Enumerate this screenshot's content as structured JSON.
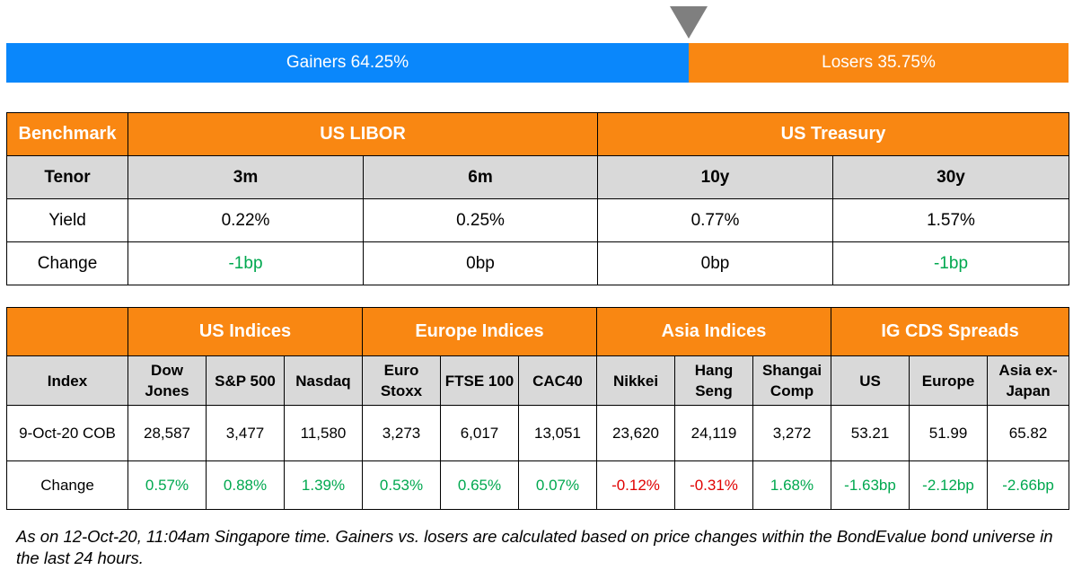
{
  "breadth": {
    "gainers_label": "Gainers 64.25%",
    "losers_label": "Losers 35.75%",
    "gainers_pct": 64.25,
    "losers_pct": 35.75,
    "gainers_color": "#0a87fb",
    "losers_color": "#f98712",
    "marker_icon": "down-triangle-icon"
  },
  "rates": {
    "benchmark_label": "Benchmark",
    "libor_label": "US LIBOR",
    "treasury_label": "US Treasury",
    "tenor_label": "Tenor",
    "yield_label": "Yield",
    "change_label": "Change",
    "columns": [
      {
        "tenor": "3m",
        "yield": "0.22%",
        "change": "-1bp"
      },
      {
        "tenor": "6m",
        "yield": "0.25%",
        "change": "0bp"
      },
      {
        "tenor": "10y",
        "yield": "0.77%",
        "change": "0bp"
      },
      {
        "tenor": "30y",
        "yield": "1.57%",
        "change": "-1bp"
      }
    ]
  },
  "indices": {
    "groups": {
      "us": "US Indices",
      "europe": "Europe Indices",
      "asia": "Asia Indices",
      "cds": "IG CDS Spreads"
    },
    "index_label": "Index",
    "date_label": "9-Oct-20 COB",
    "change_label": "Change",
    "columns": [
      {
        "name_1": "Dow",
        "name_2": "Jones",
        "value": "28,587",
        "change": "0.57%"
      },
      {
        "name_1": "S&P 500",
        "name_2": "",
        "value": "3,477",
        "change": "0.88%"
      },
      {
        "name_1": "Nasdaq",
        "name_2": "",
        "value": "11,580",
        "change": "1.39%"
      },
      {
        "name_1": "Euro",
        "name_2": "Stoxx",
        "value": "3,273",
        "change": "0.53%"
      },
      {
        "name_1": "FTSE 100",
        "name_2": "",
        "value": "6,017",
        "change": "0.65%"
      },
      {
        "name_1": "CAC40",
        "name_2": "",
        "value": "13,051",
        "change": "0.07%"
      },
      {
        "name_1": "Nikkei",
        "name_2": "",
        "value": "23,620",
        "change": "-0.12%"
      },
      {
        "name_1": "Hang",
        "name_2": "Seng",
        "value": "24,119",
        "change": "-0.31%"
      },
      {
        "name_1": "Shangai",
        "name_2": "Comp",
        "value": "3,272",
        "change": "1.68%"
      },
      {
        "name_1": "US",
        "name_2": "",
        "value": "53.21",
        "change": "-1.63bp"
      },
      {
        "name_1": "Europe",
        "name_2": "",
        "value": "51.99",
        "change": "-2.12bp"
      },
      {
        "name_1": "Asia ex-",
        "name_2": "Japan",
        "value": "65.82",
        "change": "-2.66bp"
      }
    ]
  },
  "colors": {
    "header_orange": "#f98712",
    "subheader_gray": "#d9d9d9",
    "positive_green": "#00a84f",
    "negative_red": "#e00000"
  },
  "footnote": "As on 12-Oct-20, 11:04am Singapore time. Gainers vs. losers are calculated based on price changes within the BondEvalue bond universe in the last 24 hours."
}
